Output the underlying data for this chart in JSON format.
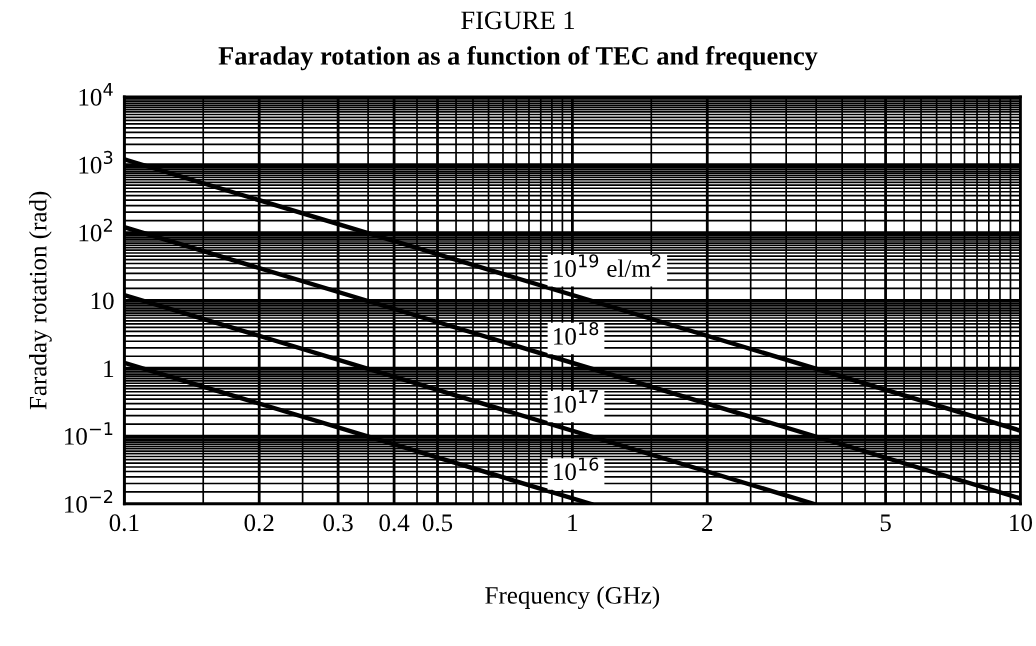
{
  "chart_data": {
    "type": "line",
    "title": "FIGURE 1",
    "subtitle": "Faraday rotation as a function of TEC and frequency",
    "xlabel": "Frequency (GHz)",
    "ylabel": "Faraday rotation (rad)",
    "log": "xy",
    "grid": true,
    "legend": false,
    "marker": "none",
    "line_style": "solid",
    "xlim": [
      0.1,
      10
    ],
    "ylim": [
      0.01,
      10000
    ],
    "xticks": [
      0.1,
      0.2,
      0.3,
      0.4,
      0.5,
      1,
      2,
      5,
      10
    ],
    "yticks": [
      {
        "value": 0.01,
        "label": "10$^{−2}$"
      },
      {
        "value": 0.1,
        "label": "10$^{−1}$"
      },
      1,
      10,
      {
        "value": 100,
        "label": "10$^{2}$"
      },
      {
        "value": 1000,
        "label": "10$^{3}$"
      },
      {
        "value": 10000,
        "label": "10$^{4}$"
      }
    ],
    "series": [
      {
        "name": "10$^{19}$ el/m$^{2}$",
        "color": "#000000",
        "x": [
          0.1,
          10
        ],
        "values": [
          1200,
          0.12
        ]
      },
      {
        "name": "10$^{18}$",
        "color": "#000000",
        "x": [
          0.1,
          10
        ],
        "values": [
          120,
          0.012
        ]
      },
      {
        "name": "10$^{17}$",
        "color": "#000000",
        "x": [
          0.1,
          3.46
        ],
        "values": [
          12,
          0.01
        ]
      },
      {
        "name": "10$^{16}$",
        "color": "#000000",
        "x": [
          0.1,
          1.1
        ],
        "values": [
          1.2,
          0.01
        ]
      }
    ]
  }
}
